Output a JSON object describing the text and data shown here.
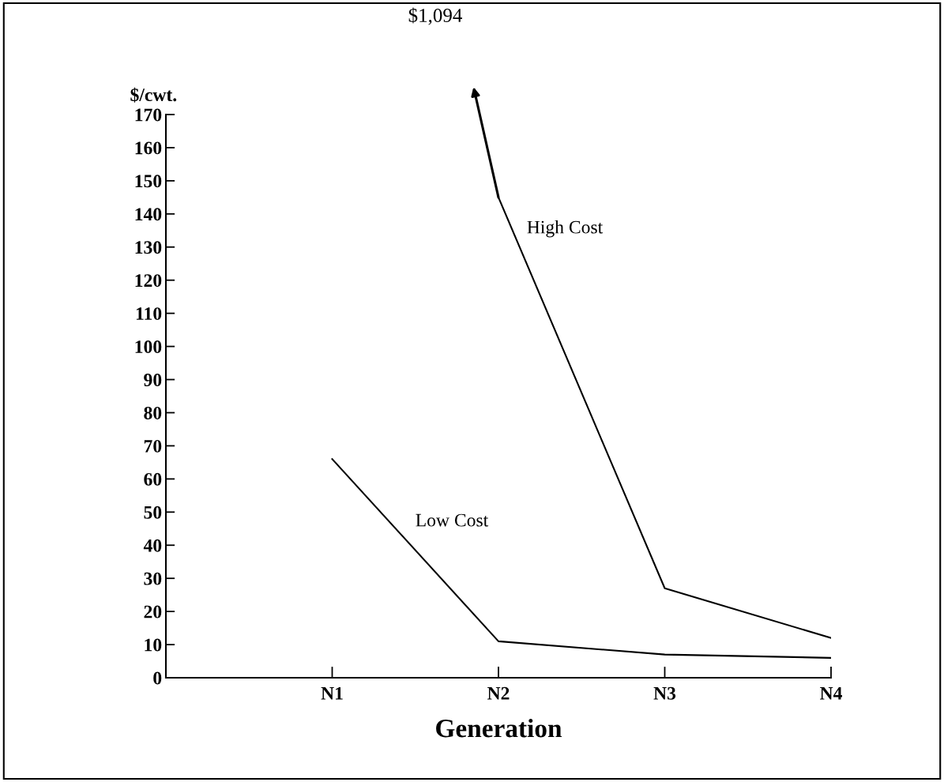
{
  "chart_data": {
    "type": "line",
    "categories": [
      null,
      "N1",
      "N2",
      "N3",
      "N4"
    ],
    "series": [
      {
        "name": "High Cost",
        "color": "#000000",
        "values": [
          null,
          null,
          145,
          27,
          12
        ]
      },
      {
        "name": "Low Cost",
        "color": "#000000",
        "values": [
          null,
          66,
          11,
          7,
          6
        ]
      }
    ],
    "xlabel": "Generation",
    "ylabel": "$/cwt.",
    "ylim": [
      0,
      170
    ],
    "yticks": [
      0,
      10,
      20,
      30,
      40,
      50,
      60,
      70,
      80,
      90,
      100,
      110,
      120,
      130,
      140,
      150,
      160,
      170
    ],
    "annotations": [
      "$1,094"
    ],
    "grid": false,
    "legend": false,
    "marker": "none",
    "line_style": "solid"
  }
}
